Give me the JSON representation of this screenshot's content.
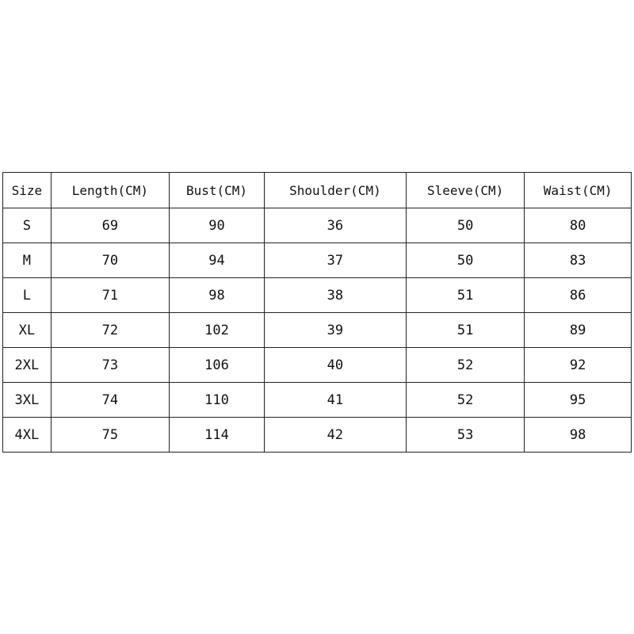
{
  "size_chart": {
    "headers": [
      "Size",
      "Length(CM)",
      "Bust(CM)",
      "Shoulder(CM)",
      "Sleeve(CM)",
      "Waist(CM)"
    ],
    "rows": [
      [
        "S",
        "69",
        "90",
        "36",
        "50",
        "80"
      ],
      [
        "M",
        "70",
        "94",
        "37",
        "50",
        "83"
      ],
      [
        "L",
        "71",
        "98",
        "38",
        "51",
        "86"
      ],
      [
        "XL",
        "72",
        "102",
        "39",
        "51",
        "89"
      ],
      [
        "2XL",
        "73",
        "106",
        "40",
        "52",
        "92"
      ],
      [
        "3XL",
        "74",
        "110",
        "41",
        "52",
        "95"
      ],
      [
        "4XL",
        "75",
        "114",
        "42",
        "53",
        "98"
      ]
    ]
  }
}
